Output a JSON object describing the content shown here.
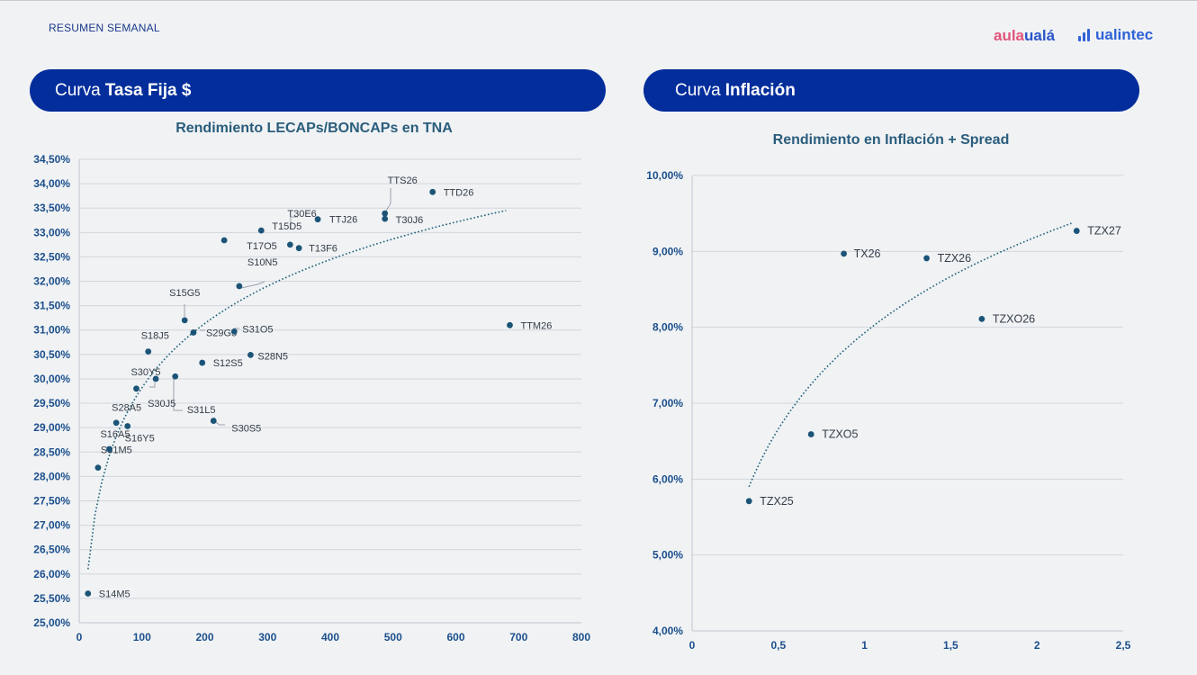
{
  "header": {
    "report_label": "RESUMEN SEMANAL",
    "logo_aula_part1": "aula",
    "logo_aula_part2": "ualá",
    "logo_valintec": "ualintec",
    "colors": {
      "banner": "#022d9b",
      "marker": "#1c5478",
      "title": "#2a5d7c",
      "axis": "#1b4f8c"
    }
  },
  "left_section": {
    "banner_prefix": "Curva",
    "banner_strong": "Tasa Fija $"
  },
  "right_section": {
    "banner_prefix": "Curva",
    "banner_strong": "Inflación"
  },
  "chart_data": [
    {
      "type": "scatter",
      "title": "Rendimiento LECAPs/BONCAPs en TNA",
      "xlabel": "",
      "ylabel": "",
      "xlim": [
        0,
        800
      ],
      "ylim": [
        25,
        34.5
      ],
      "x_ticks": [
        0,
        100,
        200,
        300,
        400,
        500,
        600,
        700,
        800
      ],
      "x_tick_labels": [
        "0",
        "100",
        "200",
        "300",
        "400",
        "500",
        "600",
        "700",
        "800"
      ],
      "y_ticks": [
        25,
        25.5,
        26,
        26.5,
        27,
        27.5,
        28,
        28.5,
        29,
        29.5,
        30,
        30.5,
        31,
        31.5,
        32,
        32.5,
        33,
        33.5,
        34,
        34.5
      ],
      "y_tick_labels": [
        "25,00%",
        "25,50%",
        "26,00%",
        "26,50%",
        "27,00%",
        "27,50%",
        "28,00%",
        "28,50%",
        "29,00%",
        "29,50%",
        "30,00%",
        "30,50%",
        "31,00%",
        "31,50%",
        "32,00%",
        "32,50%",
        "33,00%",
        "33,50%",
        "34,00%",
        "34,50%"
      ],
      "grid": "horizontal",
      "trendline": {
        "kind": "logarithmic",
        "style": "dotted",
        "x_start": 14,
        "x_end": 680,
        "y_start": 26.1,
        "y_end": 33.45
      },
      "points": [
        {
          "label": "S14M5",
          "x": 14,
          "y": 25.6
        },
        {
          "label": "S31M5",
          "x": 30,
          "y": 28.18
        },
        {
          "label": "S16A5",
          "x": 48,
          "y": 28.56
        },
        {
          "label": "S28A5",
          "x": 59,
          "y": 29.1
        },
        {
          "label": "S16Y5",
          "x": 77,
          "y": 29.03
        },
        {
          "label": "S30Y5",
          "x": 91,
          "y": 29.8
        },
        {
          "label": "S18J5",
          "x": 110,
          "y": 30.56
        },
        {
          "label": "S30J5",
          "x": 122,
          "y": 30.0
        },
        {
          "label": "S31L5",
          "x": 153,
          "y": 30.05
        },
        {
          "label": "S15G5",
          "x": 168,
          "y": 31.2
        },
        {
          "label": "S29G5",
          "x": 182,
          "y": 30.95
        },
        {
          "label": "S12S5",
          "x": 196,
          "y": 30.33
        },
        {
          "label": "S30S5",
          "x": 214,
          "y": 29.14
        },
        {
          "label": "T17O5",
          "x": 231,
          "y": 32.84
        },
        {
          "label": "S31O5",
          "x": 247,
          "y": 30.97
        },
        {
          "label": "S10N5",
          "x": 255,
          "y": 31.9
        },
        {
          "label": "S28N5",
          "x": 273,
          "y": 30.49
        },
        {
          "label": "T15D5",
          "x": 290,
          "y": 33.04
        },
        {
          "label": "T30E6",
          "x": 336,
          "y": 32.75
        },
        {
          "label": "T13F6",
          "x": 350,
          "y": 32.68
        },
        {
          "label": "TTJ26",
          "x": 380,
          "y": 33.27
        },
        {
          "label": "TTS26",
          "x": 487,
          "y": 33.39
        },
        {
          "label": "T30J6",
          "x": 487,
          "y": 33.28
        },
        {
          "label": "TTD26",
          "x": 563,
          "y": 33.83
        },
        {
          "label": "TTM26",
          "x": 686,
          "y": 31.1
        }
      ]
    },
    {
      "type": "scatter",
      "title": "Rendimiento en Inflación + Spread",
      "xlabel": "",
      "ylabel": "",
      "xlim": [
        0,
        2.5
      ],
      "ylim": [
        4,
        10
      ],
      "x_ticks": [
        0,
        0.5,
        1,
        1.5,
        2,
        2.5
      ],
      "x_tick_labels": [
        "0",
        "0,5",
        "1",
        "1,5",
        "2",
        "2,5"
      ],
      "y_ticks": [
        4,
        5,
        6,
        7,
        8,
        9,
        10
      ],
      "y_tick_labels": [
        "4,00%",
        "5,00%",
        "6,00%",
        "7,00%",
        "8,00%",
        "9,00%",
        "10,00%"
      ],
      "grid": "horizontal",
      "trendline": {
        "kind": "logarithmic",
        "style": "dotted",
        "x_start": 0.33,
        "x_end": 2.2,
        "y_start": 5.9,
        "y_end": 9.37
      },
      "points": [
        {
          "label": "TZX25",
          "x": 0.33,
          "y": 5.71
        },
        {
          "label": "TZXO5",
          "x": 0.69,
          "y": 6.59
        },
        {
          "label": "TX26",
          "x": 0.88,
          "y": 8.97
        },
        {
          "label": "TZX26",
          "x": 1.36,
          "y": 8.91
        },
        {
          "label": "TZXO26",
          "x": 1.68,
          "y": 8.11
        },
        {
          "label": "TZX27",
          "x": 2.23,
          "y": 9.27
        }
      ]
    }
  ]
}
